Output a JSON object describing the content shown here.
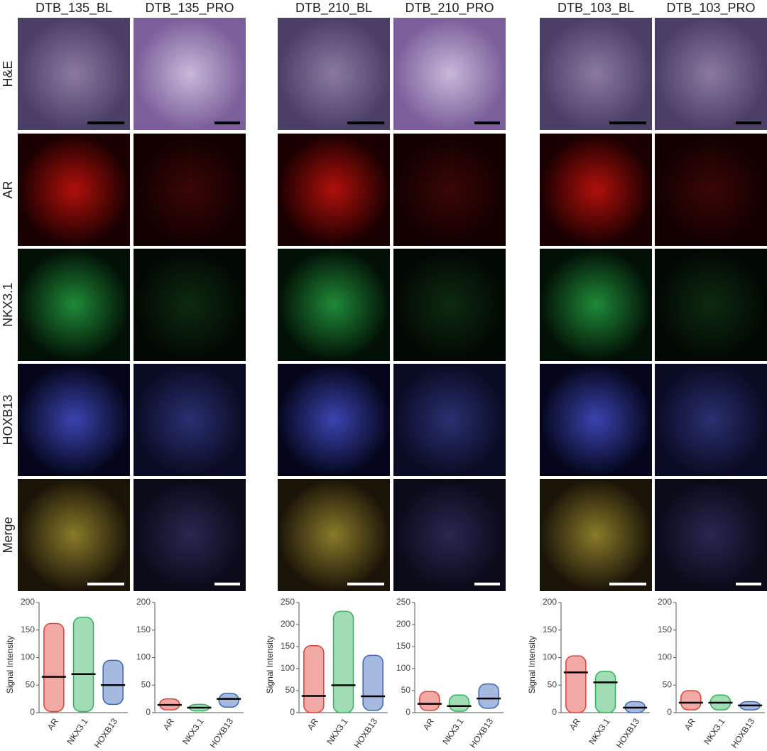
{
  "column_headers": [
    "DTB_135_BL",
    "DTB_135_PRO",
    "DTB_210_BL",
    "DTB_210_PRO",
    "DTB_103_BL",
    "DTB_103_PRO"
  ],
  "row_labels": [
    "H&E",
    "AR",
    "NKX3.1",
    "HOXB13",
    "Merge"
  ],
  "chart_data": [
    {
      "type": "strip",
      "ylabel": "Signal Intensity",
      "categories": [
        "AR",
        "NKX3.1",
        "HOXB13"
      ],
      "colors": [
        "#e0403a",
        "#2fb25a",
        "#3a66b8"
      ],
      "median": [
        65,
        70,
        50
      ],
      "min": [
        2,
        2,
        15
      ],
      "max": [
        162,
        173,
        95
      ],
      "ylim": [
        0,
        200
      ],
      "yticks": [
        0,
        50,
        100,
        150,
        200
      ]
    },
    {
      "type": "strip",
      "categories": [
        "AR",
        "NKX3.1",
        "HOXB13"
      ],
      "colors": [
        "#e0403a",
        "#2fb25a",
        "#3a66b8"
      ],
      "median": [
        14,
        9,
        25
      ],
      "min": [
        5,
        3,
        10
      ],
      "max": [
        25,
        15,
        35
      ],
      "ylim": [
        0,
        200
      ],
      "yticks": [
        0,
        50,
        100,
        150,
        200
      ]
    },
    {
      "type": "strip",
      "ylabel": "Signal Intensity",
      "categories": [
        "AR",
        "NKX3.1",
        "HOXB13"
      ],
      "colors": [
        "#e0403a",
        "#2fb25a",
        "#3a66b8"
      ],
      "median": [
        38,
        62,
        37
      ],
      "min": [
        0,
        0,
        5
      ],
      "max": [
        152,
        230,
        130
      ],
      "ylim": [
        0,
        250
      ],
      "yticks": [
        0,
        50,
        100,
        150,
        200,
        250
      ]
    },
    {
      "type": "strip",
      "categories": [
        "AR",
        "NKX3.1",
        "HOXB13"
      ],
      "colors": [
        "#e0403a",
        "#2fb25a",
        "#3a66b8"
      ],
      "median": [
        20,
        15,
        32
      ],
      "min": [
        5,
        3,
        10
      ],
      "max": [
        48,
        40,
        65
      ],
      "ylim": [
        0,
        250
      ],
      "yticks": [
        0,
        50,
        100,
        150,
        200,
        250
      ]
    },
    {
      "type": "strip",
      "ylabel": "Signal Intensity",
      "categories": [
        "AR",
        "NKX3.1",
        "HOXB13"
      ],
      "colors": [
        "#e0403a",
        "#2fb25a",
        "#3a66b8"
      ],
      "median": [
        73,
        55,
        9
      ],
      "min": [
        0,
        0,
        0
      ],
      "max": [
        103,
        75,
        20
      ],
      "ylim": [
        0,
        200
      ],
      "yticks": [
        0,
        50,
        100,
        150,
        200
      ]
    },
    {
      "type": "strip",
      "categories": [
        "AR",
        "NKX3.1",
        "HOXB13"
      ],
      "colors": [
        "#e0403a",
        "#2fb25a",
        "#3a66b8"
      ],
      "median": [
        18,
        18,
        13
      ],
      "min": [
        5,
        5,
        5
      ],
      "max": [
        40,
        32,
        20
      ],
      "ylim": [
        0,
        200
      ],
      "yticks": [
        0,
        50,
        100,
        150,
        200
      ]
    }
  ]
}
